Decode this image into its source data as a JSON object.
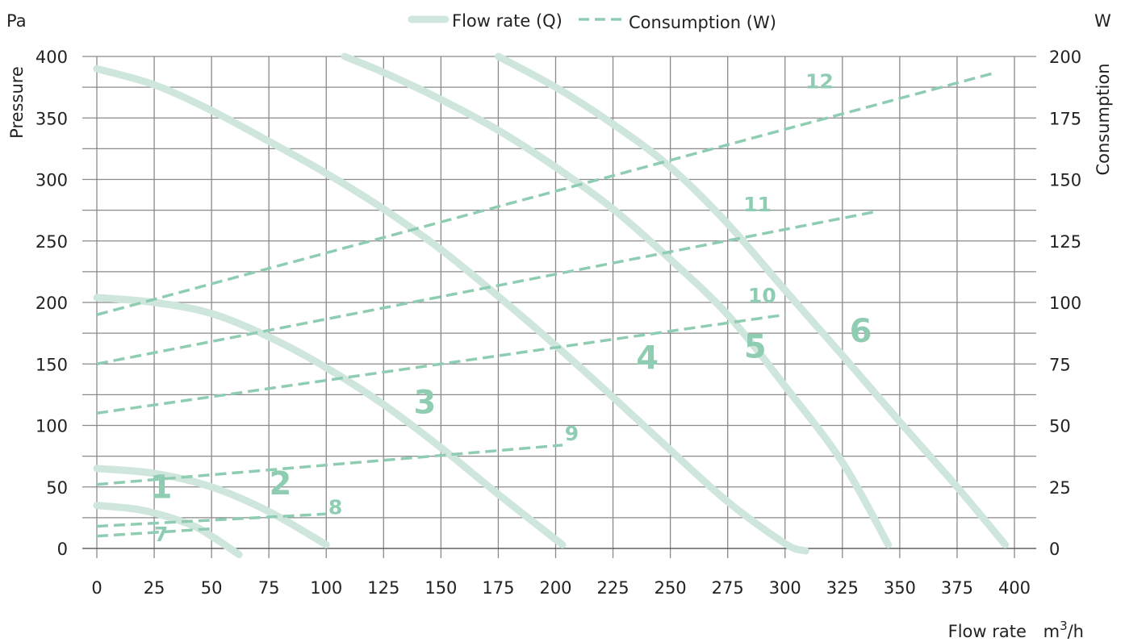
{
  "chart_data": {
    "type": "line",
    "legend": {
      "placement": "top-center",
      "items": [
        {
          "label": "Flow rate (Q)",
          "style": "solid"
        },
        {
          "label": "Consumption (W)",
          "style": "dashed"
        }
      ]
    },
    "left_axis": {
      "unit": "Pa",
      "label": "Pressure",
      "range": [
        0,
        400
      ],
      "ticks": [
        0,
        50,
        100,
        150,
        200,
        250,
        300,
        350,
        400
      ]
    },
    "right_axis": {
      "unit": "W",
      "label": "Consumption",
      "range": [
        0,
        200
      ],
      "ticks": [
        0,
        25,
        50,
        75,
        100,
        125,
        150,
        175,
        200
      ]
    },
    "x_axis": {
      "label": "Flow rate",
      "unit_base": "m",
      "unit_sup": "3",
      "unit_tail": "/h",
      "range": [
        0,
        400
      ],
      "ticks": [
        0,
        25,
        50,
        75,
        100,
        125,
        150,
        175,
        200,
        225,
        250,
        275,
        300,
        325,
        350,
        375,
        400
      ]
    },
    "grid": true,
    "colors": {
      "flow": "#cfe6dc",
      "consumption": "#8fcdb2",
      "number": "#8fcdb2"
    },
    "flow_series": [
      {
        "name": "1",
        "axis": "left",
        "x": [
          0,
          20,
          40,
          50,
          62
        ],
        "y": [
          35,
          31,
          20,
          10,
          -5
        ]
      },
      {
        "name": "2",
        "axis": "left",
        "x": [
          0,
          25,
          50,
          75,
          100
        ],
        "y": [
          65,
          61,
          50,
          30,
          3
        ]
      },
      {
        "name": "3",
        "axis": "left",
        "x": [
          0,
          25,
          50,
          75,
          100,
          125,
          150,
          175,
          203
        ],
        "y": [
          204,
          200,
          191,
          172,
          147,
          117,
          82,
          44,
          3
        ]
      },
      {
        "name": "4",
        "axis": "left",
        "x": [
          0,
          25,
          50,
          75,
          100,
          125,
          150,
          175,
          200,
          225,
          250,
          275,
          300,
          309
        ],
        "y": [
          390,
          377,
          356,
          331,
          305,
          276,
          243,
          205,
          165,
          123,
          80,
          38,
          4,
          -2
        ]
      },
      {
        "name": "5",
        "axis": "left",
        "x": [
          108,
          125,
          150,
          175,
          200,
          225,
          250,
          275,
          300,
          325,
          345
        ],
        "y": [
          400,
          387,
          365,
          340,
          310,
          276,
          235,
          190,
          132,
          70,
          3
        ]
      },
      {
        "name": "6",
        "axis": "left",
        "x": [
          175,
          200,
          225,
          250,
          275,
          300,
          325,
          350,
          375,
          396
        ],
        "y": [
          400,
          375,
          345,
          310,
          264,
          210,
          157,
          103,
          50,
          3
        ]
      }
    ],
    "consumption_series": [
      {
        "name": "7",
        "axis": "right",
        "x": [
          0,
          50
        ],
        "y": [
          5,
          8
        ]
      },
      {
        "name": "8",
        "axis": "right",
        "x": [
          0,
          100
        ],
        "y": [
          9,
          14
        ]
      },
      {
        "name": "9",
        "axis": "right",
        "x": [
          0,
          203
        ],
        "y": [
          26,
          42
        ]
      },
      {
        "name": "10",
        "axis": "right",
        "x": [
          0,
          300
        ],
        "y": [
          55,
          95
        ]
      },
      {
        "name": "11",
        "axis": "right",
        "x": [
          0,
          340
        ],
        "y": [
          75,
          137
        ]
      },
      {
        "name": "12",
        "axis": "right",
        "x": [
          0,
          390
        ],
        "y": [
          95,
          193
        ]
      }
    ],
    "labels": [
      {
        "text": "1",
        "x": 28,
        "y": 41,
        "axis": "left",
        "size": "large"
      },
      {
        "text": "2",
        "x": 80,
        "y": 44,
        "axis": "left",
        "size": "large"
      },
      {
        "text": "3",
        "x": 143,
        "y": 110,
        "axis": "left",
        "size": "large"
      },
      {
        "text": "4",
        "x": 240,
        "y": 146,
        "axis": "left",
        "size": "large"
      },
      {
        "text": "5",
        "x": 287,
        "y": 155,
        "axis": "left",
        "size": "large"
      },
      {
        "text": "6",
        "x": 333,
        "y": 168,
        "axis": "left",
        "size": "large"
      },
      {
        "text": "7",
        "x": 28,
        "y": 3,
        "axis": "right",
        "size": "small"
      },
      {
        "text": "8",
        "x": 104,
        "y": 14,
        "axis": "right",
        "size": "small"
      },
      {
        "text": "9",
        "x": 207,
        "y": 44,
        "axis": "right",
        "size": "small"
      },
      {
        "text": "10",
        "x": 290,
        "y": 100,
        "axis": "right",
        "size": "small"
      },
      {
        "text": "11",
        "x": 288,
        "y": 137,
        "axis": "right",
        "size": "small"
      },
      {
        "text": "12",
        "x": 315,
        "y": 187,
        "axis": "right",
        "size": "small"
      }
    ]
  }
}
